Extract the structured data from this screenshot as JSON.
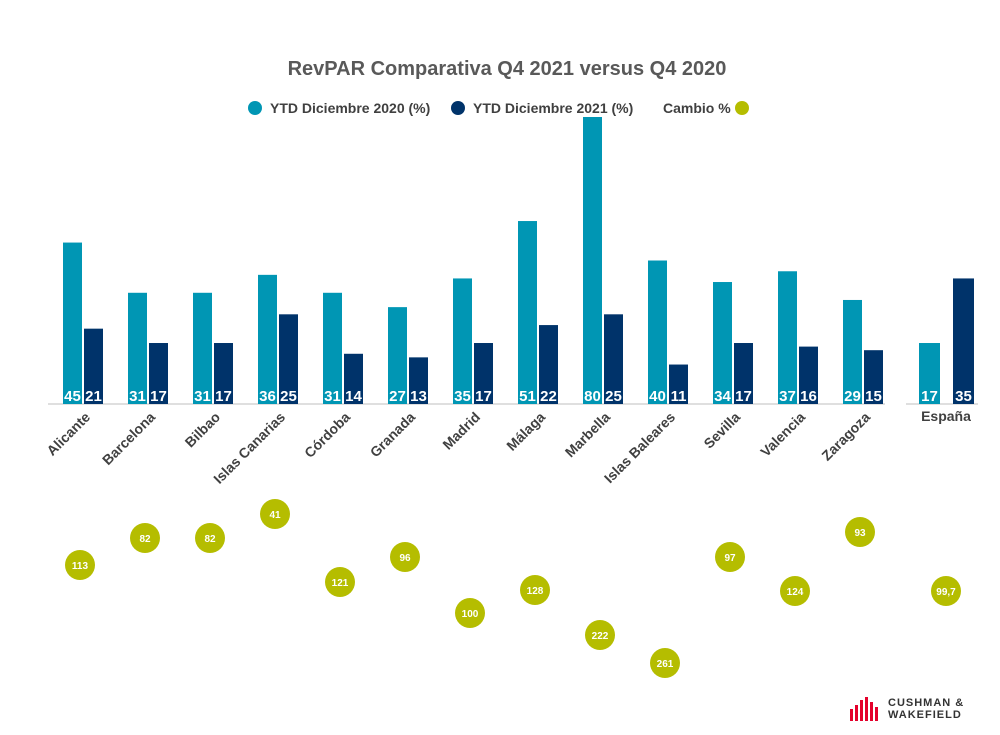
{
  "chart_data": {
    "type": "bar",
    "title": "RevPAR Comparativa Q4 2021 versus Q4 2020",
    "legend": {
      "placement": "top-center"
    },
    "categories": [
      "Alicante",
      "Barcelona",
      "Bilbao",
      "Islas Canarias",
      "Córdoba",
      "Granada",
      "Madrid",
      "Málaga",
      "Marbella",
      "Islas Baleares",
      "Sevilla",
      "Valencia",
      "Zaragoza"
    ],
    "series": [
      {
        "name": "YTD Diciembre 2020 (%)",
        "color": "#0096B4",
        "values": [
          45,
          31,
          31,
          36,
          31,
          27,
          35,
          51,
          80,
          40,
          34,
          37,
          29
        ]
      },
      {
        "name": "YTD Diciembre 2021 (%)",
        "color": "#00336A",
        "values": [
          21,
          17,
          17,
          25,
          14,
          13,
          17,
          22,
          25,
          11,
          17,
          16,
          15
        ]
      },
      {
        "name": "Cambio %",
        "color": "#B5BD00",
        "type": "scatter",
        "values": [
          "113",
          "82",
          "82",
          "41",
          "121",
          "96",
          "100",
          "128",
          "222",
          "261",
          "97",
          "124",
          "93"
        ]
      }
    ],
    "total": {
      "category": "España",
      "values": [
        17,
        35
      ],
      "change": "99,7"
    },
    "ylim": [
      0,
      80
    ],
    "grid": false
  },
  "branding": {
    "line1": "CUSHMAN &",
    "line2": "WAKEFIELD",
    "color": "#E4002B"
  }
}
